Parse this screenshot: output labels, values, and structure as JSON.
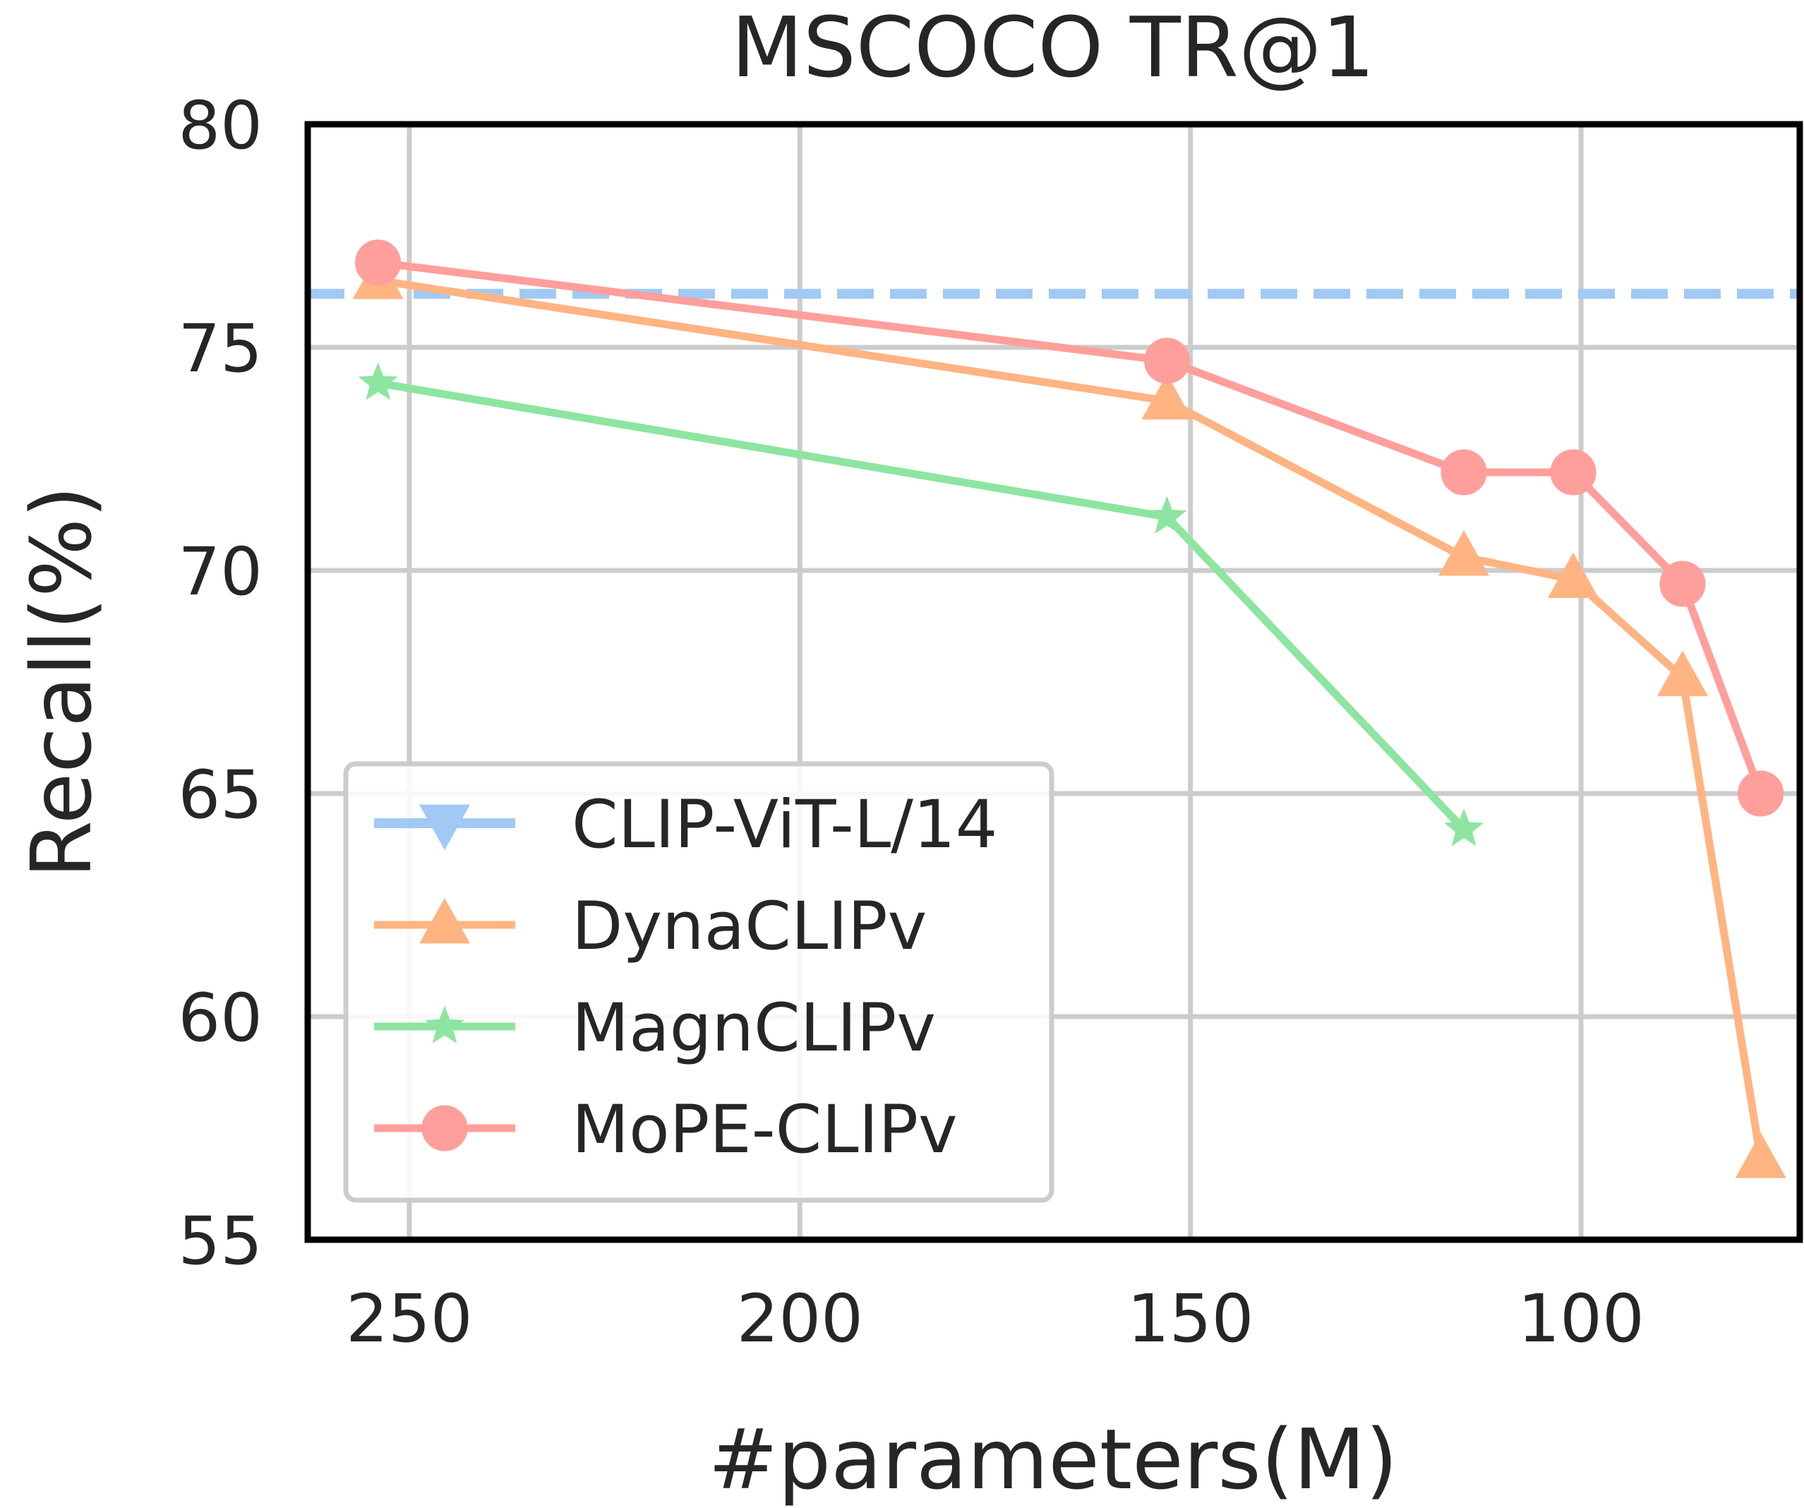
{
  "chart_data": {
    "type": "line",
    "title": "MSCOCO TR@1",
    "xlabel": "#parameters(M)",
    "ylabel": "Recall(%)",
    "xlim": [
      263,
      72
    ],
    "ylim": [
      55,
      80
    ],
    "x_reversed": true,
    "xticks": [
      250,
      200,
      150,
      100
    ],
    "yticks": [
      55,
      60,
      65,
      70,
      75,
      80
    ],
    "grid": true,
    "legend_position": "lower-left",
    "series": [
      {
        "name": "CLIP-ViT-L/14",
        "color": "#a1c9f4",
        "marker": "triangle-down",
        "style": "dashed-hline",
        "y": 76.2
      },
      {
        "name": "DynaCLIPv",
        "color": "#ffb482",
        "marker": "triangle-up",
        "x": [
          254,
          153,
          115,
          101,
          87,
          77
        ],
        "y": [
          76.5,
          73.8,
          70.3,
          69.8,
          67.6,
          56.8
        ]
      },
      {
        "name": "MagnCLIPv",
        "color": "#8de5a1",
        "marker": "star",
        "x": [
          254,
          153,
          115
        ],
        "y": [
          74.2,
          71.2,
          64.2
        ]
      },
      {
        "name": "MoPE-CLIPv",
        "color": "#ff9f9b",
        "marker": "circle",
        "x": [
          254,
          153,
          115,
          101,
          87,
          77
        ],
        "y": [
          76.9,
          74.7,
          72.2,
          72.2,
          69.7,
          65.0
        ]
      }
    ]
  }
}
